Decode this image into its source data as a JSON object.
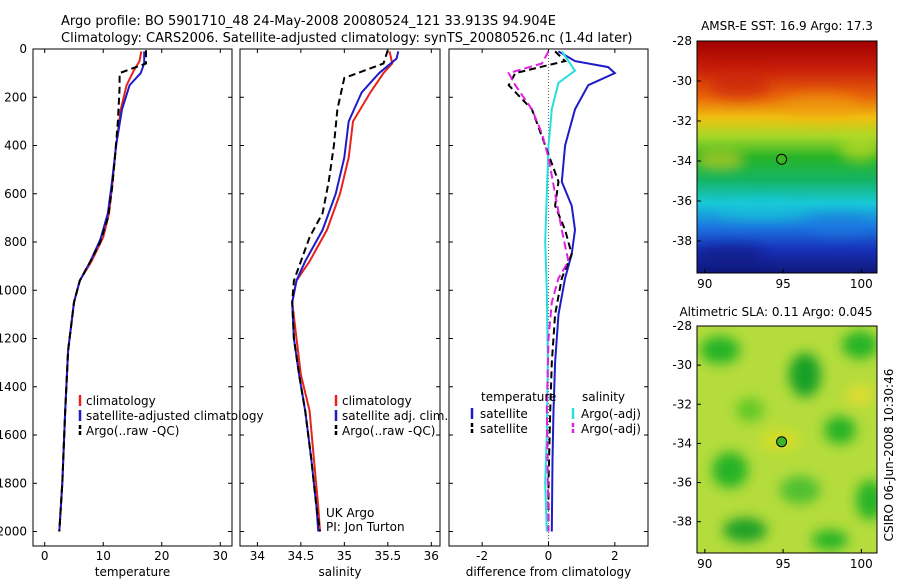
{
  "header": {
    "line1": "Argo profile: BO 5901710_48 24-May-2008 20080524_121 33.913S 94.904E",
    "line2": "Climatology: CARS2006. Satellite-adjusted climatology: synTS_20080526.nc (1.4d later)"
  },
  "side_label": "CSIRO 06-Jun-2008 10:30:46",
  "colors": {
    "climatology": "#e8231a",
    "satellite": "#1c1cc8",
    "argo": "#000000",
    "sal_satellite": "#28dede",
    "sal_argo": "#e020e0"
  },
  "chart_data": [
    {
      "type": "line",
      "name": "temperature-profile",
      "xlabel": "temperature",
      "ylabel": "",
      "xlim": [
        -2,
        32
      ],
      "ylim": [
        2060,
        0
      ],
      "xticks": [
        "0",
        "10",
        "20",
        "30"
      ],
      "yticks": [
        "0",
        "200",
        "400",
        "600",
        "800",
        "1000",
        "1200",
        "1400",
        "1600",
        "1800",
        "2000"
      ],
      "legend": [
        "climatology",
        "satellite-adjusted climatology",
        "Argo(..raw -QC)"
      ],
      "legend_position": "lower-right",
      "series": [
        {
          "name": "climatology",
          "color": "#e8231a",
          "dash": "",
          "points": [
            [
              16.5,
              10
            ],
            [
              16.2,
              50
            ],
            [
              15.2,
              90
            ],
            [
              14,
              150
            ],
            [
              13,
              250
            ],
            [
              12.2,
              400
            ],
            [
              11.6,
              550
            ],
            [
              11,
              680
            ],
            [
              10,
              780
            ],
            [
              8,
              880
            ],
            [
              6,
              960
            ],
            [
              5,
              1050
            ],
            [
              4,
              1250
            ],
            [
              3.5,
              1500
            ],
            [
              3,
              1800
            ],
            [
              2.5,
              2000
            ]
          ]
        },
        {
          "name": "satellite-adjusted climatology",
          "color": "#1c1cc8",
          "dash": "",
          "points": [
            [
              17,
              10
            ],
            [
              17,
              60
            ],
            [
              16.4,
              100
            ],
            [
              14.5,
              150
            ],
            [
              13.2,
              250
            ],
            [
              12.2,
              400
            ],
            [
              11.5,
              550
            ],
            [
              10.8,
              680
            ],
            [
              9.5,
              790
            ],
            [
              7.8,
              880
            ],
            [
              6,
              960
            ],
            [
              5,
              1050
            ],
            [
              4,
              1250
            ],
            [
              3.5,
              1500
            ],
            [
              3,
              1800
            ],
            [
              2.5,
              2000
            ]
          ]
        },
        {
          "name": "Argo(..raw -QC)",
          "color": "#000000",
          "dash": "7,4",
          "points": [
            [
              17.3,
              5
            ],
            [
              17.3,
              60
            ],
            [
              12.8,
              100
            ],
            [
              12.8,
              160
            ],
            [
              12.5,
              300
            ],
            [
              12,
              450
            ],
            [
              11.5,
              580
            ],
            [
              10.8,
              700
            ],
            [
              9.5,
              800
            ],
            [
              7.8,
              880
            ],
            [
              6,
              960
            ],
            [
              5,
              1050
            ],
            [
              4,
              1250
            ],
            [
              3.5,
              1500
            ],
            [
              3,
              1800
            ],
            [
              2.5,
              2000
            ]
          ]
        }
      ]
    },
    {
      "type": "line",
      "name": "salinity-profile",
      "xlabel": "salinity",
      "ylabel": "",
      "xlim": [
        33.8,
        36.1
      ],
      "ylim": [
        2060,
        0
      ],
      "xticks": [
        "34",
        "34.5",
        "35",
        "35.5",
        "36"
      ],
      "legend": [
        "climatology",
        "satellite adj. clim.",
        "Argo(..raw -QC)"
      ],
      "legend_position": "lower-right",
      "annotation": [
        "UK Argo",
        "PI: Jon Turton"
      ],
      "series": [
        {
          "name": "climatology",
          "color": "#e8231a",
          "dash": "",
          "points": [
            [
              35.52,
              10
            ],
            [
              35.55,
              60
            ],
            [
              35.45,
              100
            ],
            [
              35.3,
              180
            ],
            [
              35.1,
              300
            ],
            [
              35.05,
              450
            ],
            [
              34.95,
              600
            ],
            [
              34.8,
              750
            ],
            [
              34.6,
              880
            ],
            [
              34.45,
              960
            ],
            [
              34.4,
              1050
            ],
            [
              34.45,
              1200
            ],
            [
              34.5,
              1350
            ],
            [
              34.6,
              1500
            ],
            [
              34.65,
              1700
            ],
            [
              34.7,
              1900
            ],
            [
              34.72,
              2000
            ]
          ]
        },
        {
          "name": "satellite adj. clim.",
          "color": "#1c1cc8",
          "dash": "",
          "points": [
            [
              35.62,
              10
            ],
            [
              35.6,
              40
            ],
            [
              35.4,
              100
            ],
            [
              35.2,
              180
            ],
            [
              35.05,
              300
            ],
            [
              35.0,
              450
            ],
            [
              34.9,
              600
            ],
            [
              34.75,
              750
            ],
            [
              34.55,
              880
            ],
            [
              34.45,
              960
            ],
            [
              34.4,
              1050
            ],
            [
              34.42,
              1200
            ],
            [
              34.48,
              1350
            ],
            [
              34.55,
              1500
            ],
            [
              34.62,
              1700
            ],
            [
              34.68,
              1900
            ],
            [
              34.7,
              2000
            ]
          ]
        },
        {
          "name": "Argo(..raw -QC)",
          "color": "#000000",
          "dash": "7,4",
          "points": [
            [
              35.5,
              5
            ],
            [
              35.45,
              60
            ],
            [
              35.0,
              120
            ],
            [
              34.92,
              250
            ],
            [
              34.88,
              400
            ],
            [
              34.82,
              550
            ],
            [
              34.75,
              680
            ],
            [
              34.6,
              780
            ],
            [
              34.5,
              880
            ],
            [
              34.42,
              960
            ],
            [
              34.4,
              1050
            ],
            [
              34.42,
              1200
            ],
            [
              34.48,
              1350
            ],
            [
              34.55,
              1500
            ],
            [
              34.62,
              1700
            ],
            [
              34.68,
              1900
            ],
            [
              34.72,
              2000
            ]
          ]
        }
      ]
    },
    {
      "type": "line",
      "name": "difference-profile",
      "xlabel": "difference from climatology",
      "ylabel": "",
      "xlim": [
        -3.0,
        3.0
      ],
      "ylim": [
        2060,
        0
      ],
      "xticks": [
        "-2",
        "0",
        "2"
      ],
      "legend_headers": [
        "temperature",
        "salinity"
      ],
      "legend": [
        "satellite",
        "Argo(-adj)",
        "satellite",
        "Argo(-adj)"
      ],
      "legend_position": "lower-right",
      "series": [
        {
          "name": "temperature satellite",
          "color": "#1c1cc8",
          "dash": "",
          "points": [
            [
              0.3,
              10
            ],
            [
              0.8,
              50
            ],
            [
              1.8,
              75
            ],
            [
              2,
              100
            ],
            [
              1.2,
              150
            ],
            [
              0.8,
              250
            ],
            [
              0.5,
              400
            ],
            [
              0.4,
              550
            ],
            [
              0.7,
              650
            ],
            [
              0.8,
              750
            ],
            [
              0.7,
              850
            ],
            [
              0.5,
              950
            ],
            [
              0.3,
              1100
            ],
            [
              0.2,
              1300
            ],
            [
              0.15,
              1500
            ],
            [
              0.12,
              1700
            ],
            [
              0.1,
              2000
            ]
          ]
        },
        {
          "name": "salinity satellite",
          "color": "#28dede",
          "dash": "",
          "points": [
            [
              0.4,
              10
            ],
            [
              0.6,
              50
            ],
            [
              0.8,
              90
            ],
            [
              0.3,
              140
            ],
            [
              0.1,
              250
            ],
            [
              0.0,
              400
            ],
            [
              -0.05,
              600
            ],
            [
              -0.1,
              800
            ],
            [
              -0.05,
              1000
            ],
            [
              -0.02,
              1300
            ],
            [
              -0.05,
              1600
            ],
            [
              -0.1,
              1800
            ],
            [
              -0.05,
              2000
            ]
          ]
        },
        {
          "name": "temperature Argo(-adj)",
          "color": "#000000",
          "dash": "7,4",
          "points": [
            [
              0.2,
              10
            ],
            [
              0.5,
              50
            ],
            [
              -1.0,
              100
            ],
            [
              -1.2,
              150
            ],
            [
              -0.5,
              250
            ],
            [
              -0.1,
              400
            ],
            [
              0.3,
              550
            ],
            [
              0.2,
              650
            ],
            [
              0.5,
              750
            ],
            [
              0.7,
              850
            ],
            [
              0.4,
              950
            ],
            [
              0.2,
              1100
            ],
            [
              0.1,
              1300
            ],
            [
              0.05,
              1500
            ],
            [
              0.0,
              1800
            ],
            [
              0.0,
              2000
            ]
          ]
        },
        {
          "name": "salinity Argo(-adj)",
          "color": "#e020e0",
          "dash": "8,4",
          "points": [
            [
              0.0,
              10
            ],
            [
              -0.2,
              60
            ],
            [
              -1.2,
              100
            ],
            [
              -1.0,
              150
            ],
            [
              -0.5,
              250
            ],
            [
              -0.2,
              350
            ],
            [
              0.0,
              450
            ],
            [
              0.2,
              600
            ],
            [
              0.4,
              750
            ],
            [
              0.6,
              880
            ],
            [
              0.3,
              950
            ],
            [
              0.1,
              1050
            ],
            [
              0.0,
              1200
            ],
            [
              -0.05,
              1500
            ],
            [
              -0.02,
              1800
            ],
            [
              0.0,
              2000
            ]
          ]
        }
      ]
    },
    {
      "type": "heatmap",
      "name": "sst-map",
      "title": "AMSR-E SST: 16.9 Argo: 17.3",
      "xlim": [
        89.5,
        101
      ],
      "ylim": [
        -39.6,
        -28
      ],
      "xticks": [
        "90",
        "95",
        "100"
      ],
      "yticks": [
        "-28",
        "-30",
        "-32",
        "-34",
        "-36",
        "-38"
      ],
      "marker": [
        94.904,
        -33.913
      ]
    },
    {
      "type": "heatmap",
      "name": "sla-map",
      "title": "Altimetric SLA: 0.11 Argo: 0.045",
      "xlim": [
        89.5,
        101
      ],
      "ylim": [
        -39.6,
        -28
      ],
      "xticks": [
        "90",
        "95",
        "100"
      ],
      "yticks": [
        "-28",
        "-30",
        "-32",
        "-34",
        "-36",
        "-38"
      ],
      "marker": [
        94.904,
        -33.913
      ]
    }
  ]
}
